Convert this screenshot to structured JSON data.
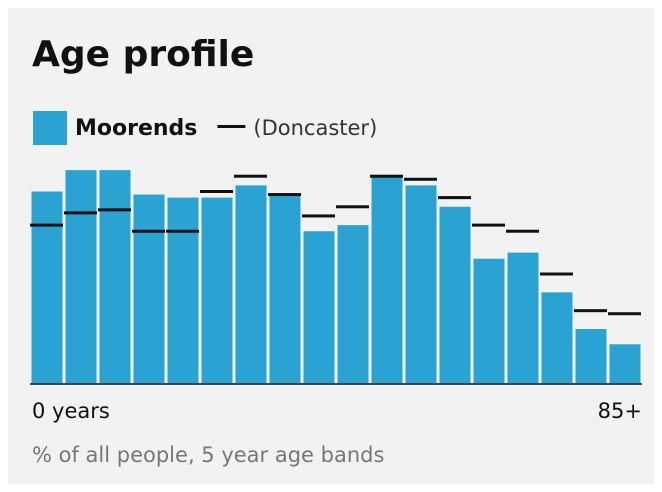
{
  "chart_data": {
    "type": "bar",
    "title": "Age profile",
    "categories": [
      "0 years",
      null,
      null,
      null,
      null,
      null,
      null,
      null,
      null,
      null,
      null,
      null,
      null,
      null,
      null,
      null,
      null,
      "85+"
    ],
    "series": [
      {
        "name": "Moorends",
        "color": "#2aa3d3",
        "style": "bar",
        "values": [
          6.3,
          7.0,
          7.0,
          6.2,
          6.1,
          6.1,
          6.5,
          6.2,
          5.0,
          5.2,
          6.8,
          6.5,
          5.8,
          4.1,
          4.3,
          3.0,
          1.8,
          1.3
        ]
      },
      {
        "name": "(Doncaster)",
        "color": "#111111",
        "style": "dash",
        "values": [
          5.2,
          5.6,
          5.7,
          5.0,
          5.0,
          6.3,
          6.8,
          6.2,
          5.5,
          5.8,
          6.8,
          6.7,
          6.1,
          5.2,
          5.0,
          3.6,
          2.4,
          2.3
        ]
      }
    ],
    "ylim": [
      0,
      7.2
    ],
    "footnote": "% of all people, 5 year age bands"
  }
}
